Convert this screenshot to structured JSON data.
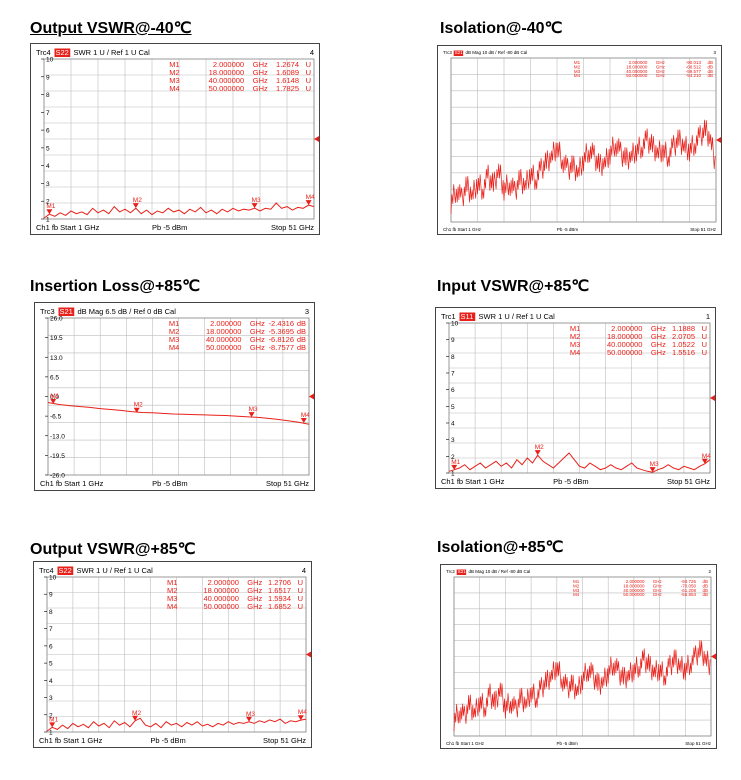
{
  "chart_data": [
    {
      "type": "line",
      "panel_title": "Output VSWR@-40℃",
      "trace": "Trc4",
      "param": "S22",
      "format": "SWR",
      "scale": "1 U /",
      "ref": "Ref 1 U",
      "cal": "Cal",
      "channel_no": "4",
      "yticks": [
        "10",
        "9",
        "8",
        "7",
        "6",
        "5",
        "4",
        "3",
        "2",
        "1"
      ],
      "ylim": [
        1,
        10
      ],
      "markers": [
        {
          "name": "M1",
          "freq": "2.000000",
          "unit_f": "GHz",
          "value": "1.2674",
          "unit_v": "U",
          "x": 2.0,
          "y": 1.2674
        },
        {
          "name": "M2",
          "freq": "18.000000",
          "unit_f": "GHz",
          "value": "1.6089",
          "unit_v": "U",
          "x": 18.0,
          "y": 1.6089
        },
        {
          "name": "M3",
          "freq": "40.000000",
          "unit_f": "GHz",
          "value": "1.6148",
          "unit_v": "U",
          "x": 40.0,
          "y": 1.6148
        },
        {
          "name": "M4",
          "freq": "50.000000",
          "unit_f": "GHz",
          "value": "1.7825",
          "unit_v": "U",
          "x": 50.0,
          "y": 1.7825
        }
      ],
      "footer": {
        "ch": "Ch1",
        "fb": "fb",
        "start": "Start 1 GHz",
        "pb": "Pb",
        "power": "-5 dBm",
        "stop": "Stop 51 GHz"
      },
      "series": [
        {
          "x": [
            1,
            2,
            3,
            4,
            5,
            6,
            7,
            8,
            9,
            10,
            11,
            12,
            13,
            14,
            15,
            16,
            17,
            18,
            19,
            20,
            21,
            22,
            23,
            24,
            25,
            26,
            27,
            28,
            29,
            30,
            31,
            32,
            33,
            34,
            35,
            36,
            37,
            38,
            39,
            40,
            41,
            42,
            43,
            44,
            45,
            46,
            47,
            48,
            49,
            50,
            51
          ],
          "values": [
            1.05,
            1.27,
            1.15,
            1.35,
            1.2,
            1.45,
            1.3,
            1.4,
            1.25,
            1.6,
            1.35,
            1.5,
            1.3,
            1.7,
            1.4,
            1.55,
            1.35,
            1.61,
            1.3,
            1.5,
            1.25,
            1.45,
            1.35,
            1.6,
            1.4,
            1.5,
            1.3,
            1.55,
            1.4,
            1.65,
            1.35,
            1.5,
            1.3,
            1.55,
            1.4,
            1.6,
            1.45,
            1.55,
            1.5,
            1.61,
            1.45,
            1.6,
            1.55,
            1.9,
            1.6,
            1.7,
            1.5,
            1.65,
            1.6,
            1.78,
            1.7
          ]
        }
      ]
    },
    {
      "type": "line",
      "panel_title": "Isolation@-40℃",
      "trace": "Trc3",
      "param": "S21",
      "format": "dB Mag",
      "scale": "10 dB /",
      "ref": "Ref -80 dB",
      "cal": "Cal",
      "channel_no": "3",
      "yticks": [],
      "ylim": [
        0,
        10
      ],
      "markers": [
        {
          "name": "M1",
          "freq": "2.000000",
          "unit_f": "GHz",
          "value": "-90.013",
          "unit_v": "dB"
        },
        {
          "name": "M2",
          "freq": "18.000000",
          "unit_f": "GHz",
          "value": "-68.512",
          "unit_v": "dB"
        },
        {
          "name": "M3",
          "freq": "40.000000",
          "unit_f": "GHz",
          "value": "-59.577",
          "unit_v": "dB"
        },
        {
          "name": "M4",
          "freq": "50.000000",
          "unit_f": "GHz",
          "value": "-54.210",
          "unit_v": "dB"
        }
      ],
      "footer": {
        "ch": "Ch1",
        "fb": "fb",
        "start": "Start 1 GHz",
        "pb": "Pb",
        "power": "-5 dBm",
        "stop": "Stop 51 GHz"
      },
      "series": [
        {
          "x": [
            1,
            2,
            3,
            4,
            5,
            6,
            7,
            8,
            9,
            10,
            11,
            12,
            13,
            14,
            15,
            16,
            17,
            18,
            19,
            20,
            21,
            22,
            23,
            24,
            25,
            26,
            27,
            28,
            29,
            30,
            31,
            32,
            33,
            34,
            35,
            36,
            37,
            38,
            39,
            40,
            41,
            42,
            43,
            44,
            45,
            46,
            47,
            48,
            49,
            50,
            51
          ],
          "values": [
            1.2,
            2.0,
            1.4,
            2.2,
            1.6,
            2.4,
            2.0,
            2.8,
            2.2,
            3.2,
            2.0,
            2.4,
            1.8,
            2.6,
            2.2,
            3.0,
            2.6,
            3.2,
            3.6,
            4.0,
            4.6,
            3.8,
            3.2,
            3.4,
            3.0,
            3.8,
            4.4,
            4.0,
            3.4,
            3.6,
            4.2,
            4.8,
            4.2,
            3.8,
            4.0,
            4.4,
            4.6,
            5.0,
            4.6,
            4.2,
            4.4,
            4.0,
            4.6,
            5.0,
            4.6,
            4.4,
            4.8,
            5.2,
            5.6,
            5.0,
            3.4
          ]
        }
      ]
    },
    {
      "type": "line",
      "panel_title": "Insertion Loss@+85℃",
      "trace": "Trc3",
      "param": "S21",
      "format": "dB Mag",
      "scale": "6.5 dB /",
      "ref": "Ref 0 dB",
      "cal": "Cal",
      "channel_no": "3",
      "yticks": [
        "26.0",
        "19.5",
        "13.0",
        "6.5",
        "0.0",
        "-6.5",
        "-13.0",
        "-19.5",
        "-26.0"
      ],
      "ylim": [
        -26,
        26
      ],
      "markers": [
        {
          "name": "M1",
          "freq": "2.000000",
          "unit_f": "GHz",
          "value": "-2.4316",
          "unit_v": "dB",
          "x": 2.0,
          "y": -2.4316
        },
        {
          "name": "M2",
          "freq": "18.000000",
          "unit_f": "GHz",
          "value": "-5.3695",
          "unit_v": "dB",
          "x": 18.0,
          "y": -5.3695
        },
        {
          "name": "M3",
          "freq": "40.000000",
          "unit_f": "GHz",
          "value": "-6.8126",
          "unit_v": "dB",
          "x": 40.0,
          "y": -6.8126
        },
        {
          "name": "M4",
          "freq": "50.000000",
          "unit_f": "GHz",
          "value": "-8.7577",
          "unit_v": "dB",
          "x": 50.0,
          "y": -8.7577
        }
      ],
      "footer": {
        "ch": "Ch1",
        "fb": "fb",
        "start": "Start 1 GHz",
        "pb": "Pb",
        "power": "-5 dBm",
        "stop": "Stop 51 GHz"
      },
      "series": [
        {
          "x": [
            1,
            3,
            5,
            7,
            9,
            11,
            13,
            15,
            17,
            19,
            21,
            23,
            25,
            27,
            29,
            31,
            33,
            35,
            37,
            39,
            41,
            43,
            45,
            47,
            49,
            51
          ],
          "values": [
            -2.0,
            -2.6,
            -3.0,
            -3.3,
            -3.6,
            -4.0,
            -4.3,
            -4.6,
            -5.0,
            -5.3,
            -5.4,
            -5.6,
            -5.8,
            -5.9,
            -6.0,
            -6.1,
            -6.2,
            -6.3,
            -6.5,
            -6.7,
            -6.9,
            -7.2,
            -7.6,
            -8.0,
            -8.5,
            -9.2
          ]
        }
      ]
    },
    {
      "type": "line",
      "panel_title": "Input VSWR@+85℃",
      "trace": "Trc1",
      "param": "S11",
      "format": "SWR",
      "scale": "1 U /",
      "ref": "Ref 1 U",
      "cal": "Cal",
      "channel_no": "1",
      "yticks": [
        "10",
        "9",
        "8",
        "7",
        "6",
        "5",
        "4",
        "3",
        "2",
        "1"
      ],
      "ylim": [
        1,
        10
      ],
      "markers": [
        {
          "name": "M1",
          "freq": "2.000000",
          "unit_f": "GHz",
          "value": "1.1888",
          "unit_v": "U",
          "x": 2.0,
          "y": 1.1888
        },
        {
          "name": "M2",
          "freq": "18.000000",
          "unit_f": "GHz",
          "value": "2.0705",
          "unit_v": "U",
          "x": 18.0,
          "y": 2.0705
        },
        {
          "name": "M3",
          "freq": "40.000000",
          "unit_f": "GHz",
          "value": "1.0522",
          "unit_v": "U",
          "x": 40.0,
          "y": 1.0522
        },
        {
          "name": "M4",
          "freq": "50.000000",
          "unit_f": "GHz",
          "value": "1.5516",
          "unit_v": "U",
          "x": 50.0,
          "y": 1.5516
        }
      ],
      "footer": {
        "ch": "Ch1",
        "fb": "fb",
        "start": "Start 1 GHz",
        "pb": "Pb",
        "power": "-5 dBm",
        "stop": "Stop 51 GHz"
      },
      "series": [
        {
          "x": [
            1,
            2,
            3,
            4,
            5,
            6,
            7,
            8,
            9,
            10,
            11,
            12,
            13,
            14,
            15,
            16,
            17,
            18,
            19,
            20,
            21,
            22,
            23,
            24,
            25,
            26,
            27,
            28,
            29,
            30,
            31,
            32,
            33,
            34,
            35,
            36,
            37,
            38,
            39,
            40,
            41,
            42,
            43,
            44,
            45,
            46,
            47,
            48,
            49,
            50,
            51
          ],
          "values": [
            1.1,
            1.19,
            1.3,
            1.5,
            1.2,
            1.4,
            1.6,
            1.3,
            1.5,
            1.7,
            1.4,
            1.6,
            1.3,
            1.8,
            1.5,
            1.9,
            1.6,
            2.07,
            1.7,
            1.5,
            1.3,
            1.6,
            1.9,
            2.2,
            1.8,
            1.4,
            1.3,
            1.6,
            1.4,
            1.2,
            1.3,
            1.5,
            1.3,
            1.2,
            1.4,
            1.6,
            1.3,
            1.2,
            1.1,
            1.05,
            1.2,
            1.3,
            1.5,
            1.3,
            1.2,
            1.4,
            1.3,
            1.2,
            1.4,
            1.55,
            1.8
          ]
        }
      ]
    },
    {
      "type": "line",
      "panel_title": "Output VSWR@+85℃",
      "trace": "Trc4",
      "param": "S22",
      "format": "SWR",
      "scale": "1 U /",
      "ref": "Ref 1 U",
      "cal": "Cal",
      "channel_no": "4",
      "yticks": [
        "10",
        "9",
        "8",
        "7",
        "6",
        "5",
        "4",
        "3",
        "2",
        "1"
      ],
      "ylim": [
        1,
        10
      ],
      "markers": [
        {
          "name": "M1",
          "freq": "2.000000",
          "unit_f": "GHz",
          "value": "1.2706",
          "unit_v": "U",
          "x": 2.0,
          "y": 1.2706
        },
        {
          "name": "M2",
          "freq": "18.000000",
          "unit_f": "GHz",
          "value": "1.6517",
          "unit_v": "U",
          "x": 18.0,
          "y": 1.6517
        },
        {
          "name": "M3",
          "freq": "40.000000",
          "unit_f": "GHz",
          "value": "1.5934",
          "unit_v": "U",
          "x": 40.0,
          "y": 1.5934
        },
        {
          "name": "M4",
          "freq": "50.000000",
          "unit_f": "GHz",
          "value": "1.6852",
          "unit_v": "U",
          "x": 50.0,
          "y": 1.6852
        }
      ],
      "footer": {
        "ch": "Ch1",
        "fb": "fb",
        "start": "Start 1 GHz",
        "pb": "Pb",
        "power": "-5 dBm",
        "stop": "Stop 51 GHz"
      },
      "series": [
        {
          "x": [
            1,
            2,
            3,
            4,
            5,
            6,
            7,
            8,
            9,
            10,
            11,
            12,
            13,
            14,
            15,
            16,
            17,
            18,
            19,
            20,
            21,
            22,
            23,
            24,
            25,
            26,
            27,
            28,
            29,
            30,
            31,
            32,
            33,
            34,
            35,
            36,
            37,
            38,
            39,
            40,
            41,
            42,
            43,
            44,
            45,
            46,
            47,
            48,
            49,
            50,
            51
          ],
          "values": [
            1.05,
            1.27,
            1.15,
            1.4,
            1.2,
            1.5,
            1.3,
            1.45,
            1.25,
            1.6,
            1.35,
            1.5,
            1.25,
            1.65,
            1.4,
            1.55,
            1.3,
            1.65,
            1.8,
            1.4,
            1.3,
            1.5,
            1.25,
            1.6,
            1.4,
            1.5,
            1.3,
            1.55,
            1.4,
            1.6,
            1.35,
            1.45,
            1.3,
            1.5,
            1.4,
            1.6,
            1.45,
            1.55,
            1.5,
            1.59,
            1.5,
            1.65,
            1.55,
            1.7,
            1.6,
            1.75,
            1.5,
            1.65,
            1.6,
            1.69,
            1.75
          ]
        }
      ]
    },
    {
      "type": "line",
      "panel_title": "Isolation@+85℃",
      "trace": "Trc2",
      "param": "S21",
      "format": "dB Mag",
      "scale": "10 dB /",
      "ref": "Ref -80 dB",
      "cal": "Cal",
      "channel_no": "2",
      "yticks": [],
      "ylim": [
        0,
        10
      ],
      "markers": [
        {
          "name": "M1",
          "freq": "2.000000",
          "unit_f": "GHz",
          "value": "-93.726",
          "unit_v": "dB"
        },
        {
          "name": "M2",
          "freq": "18.000000",
          "unit_f": "GHz",
          "value": "-70.050",
          "unit_v": "dB"
        },
        {
          "name": "M3",
          "freq": "40.000000",
          "unit_f": "GHz",
          "value": "-61.208",
          "unit_v": "dB"
        },
        {
          "name": "M4",
          "freq": "50.000000",
          "unit_f": "GHz",
          "value": "-56.853",
          "unit_v": "dB"
        }
      ],
      "footer": {
        "ch": "Ch1",
        "fb": "fb",
        "start": "Start 1 GHz",
        "pb": "Pb",
        "power": "-5 dBm",
        "stop": "Stop 51 GHz"
      },
      "series": [
        {
          "x": [
            1,
            2,
            3,
            4,
            5,
            6,
            7,
            8,
            9,
            10,
            11,
            12,
            13,
            14,
            15,
            16,
            17,
            18,
            19,
            20,
            21,
            22,
            23,
            24,
            25,
            26,
            27,
            28,
            29,
            30,
            31,
            32,
            33,
            34,
            35,
            36,
            37,
            38,
            39,
            40,
            41,
            42,
            43,
            44,
            45,
            46,
            47,
            48,
            49,
            50,
            51
          ],
          "values": [
            1.0,
            1.6,
            1.2,
            2.0,
            1.4,
            2.2,
            1.8,
            2.6,
            2.0,
            3.0,
            1.8,
            2.2,
            1.6,
            2.4,
            2.0,
            2.8,
            2.4,
            3.0,
            3.4,
            3.8,
            4.4,
            3.6,
            3.0,
            3.2,
            2.8,
            3.6,
            4.2,
            3.8,
            3.2,
            3.4,
            4.0,
            4.6,
            4.0,
            3.6,
            3.8,
            4.2,
            4.4,
            4.8,
            4.4,
            4.0,
            4.2,
            3.8,
            4.4,
            4.8,
            4.4,
            4.2,
            4.6,
            5.0,
            5.4,
            4.8,
            4.4
          ]
        }
      ]
    }
  ]
}
